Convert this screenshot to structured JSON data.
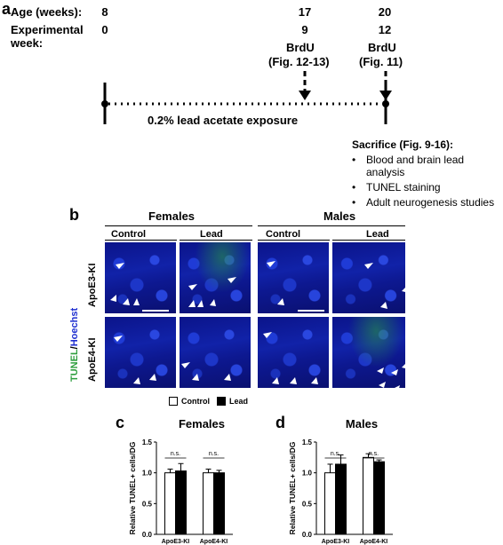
{
  "panel_a": {
    "letter": "a",
    "age_label": "Age (weeks):",
    "exp_label_1": "Experimental",
    "exp_label_2": "week:",
    "ages": [
      "8",
      "17",
      "20"
    ],
    "weeks": [
      "0",
      "9",
      "12"
    ],
    "brdu_1": "BrdU",
    "brdu_1_ref": "(Fig. 12-13)",
    "brdu_2": "BrdU",
    "brdu_2_ref": "(Fig. 11)",
    "exposure": "0.2% lead acetate exposure",
    "sacrifice_title": "Sacrifice (Fig. 9-16):",
    "sacrifice_items": [
      "Blood and brain lead",
      "analysis",
      "TUNEL staining",
      "Adult neurogenesis studies"
    ]
  },
  "panel_b": {
    "letter": "b",
    "females": "Females",
    "males": "Males",
    "control": "Control",
    "lead": "Lead",
    "apoe3": "ApoE3-KI",
    "apoe4": "ApoE4-KI",
    "stain_tunel": "TUNEL",
    "stain_sep": "/",
    "stain_hoechst": "Hoechst",
    "colors": {
      "tunel": "#2e9e3e",
      "hoechst": "#1f2fd0"
    }
  },
  "legend": {
    "control": "Control",
    "lead": "Lead"
  },
  "chart_data": [
    {
      "panel": "c",
      "type": "bar",
      "title": "Females",
      "ylabel": "Relative TUNEL+ cells/DG",
      "categories": [
        "ApoE3-KI",
        "ApoE4-KI"
      ],
      "series": [
        {
          "name": "Control",
          "values": [
            1.0,
            1.0
          ],
          "errors": [
            0.06,
            0.06
          ],
          "color": "#ffffff"
        },
        {
          "name": "Lead",
          "values": [
            1.03,
            1.0
          ],
          "errors": [
            0.12,
            0.04
          ],
          "color": "#000000"
        }
      ],
      "ylim": [
        0.0,
        1.5
      ],
      "yticks": [
        "0.0",
        "0.5",
        "1.0",
        "1.5"
      ],
      "annotations": [
        "n.s.",
        "n.s."
      ]
    },
    {
      "panel": "d",
      "type": "bar",
      "title": "Males",
      "ylabel": "Relative TUNEL+ cells/DG",
      "categories": [
        "ApoE3-KI",
        "ApoE4-KI"
      ],
      "series": [
        {
          "name": "Control",
          "values": [
            1.0,
            1.25
          ],
          "errors": [
            0.14,
            0.06
          ],
          "color": "#ffffff"
        },
        {
          "name": "Lead",
          "values": [
            1.14,
            1.18
          ],
          "errors": [
            0.15,
            0.03
          ],
          "color": "#000000"
        }
      ],
      "ylim": [
        0.0,
        1.5
      ],
      "yticks": [
        "0.0",
        "0.5",
        "1.0",
        "1.5"
      ],
      "annotations": [
        "n.s.",
        "n.s."
      ]
    }
  ]
}
